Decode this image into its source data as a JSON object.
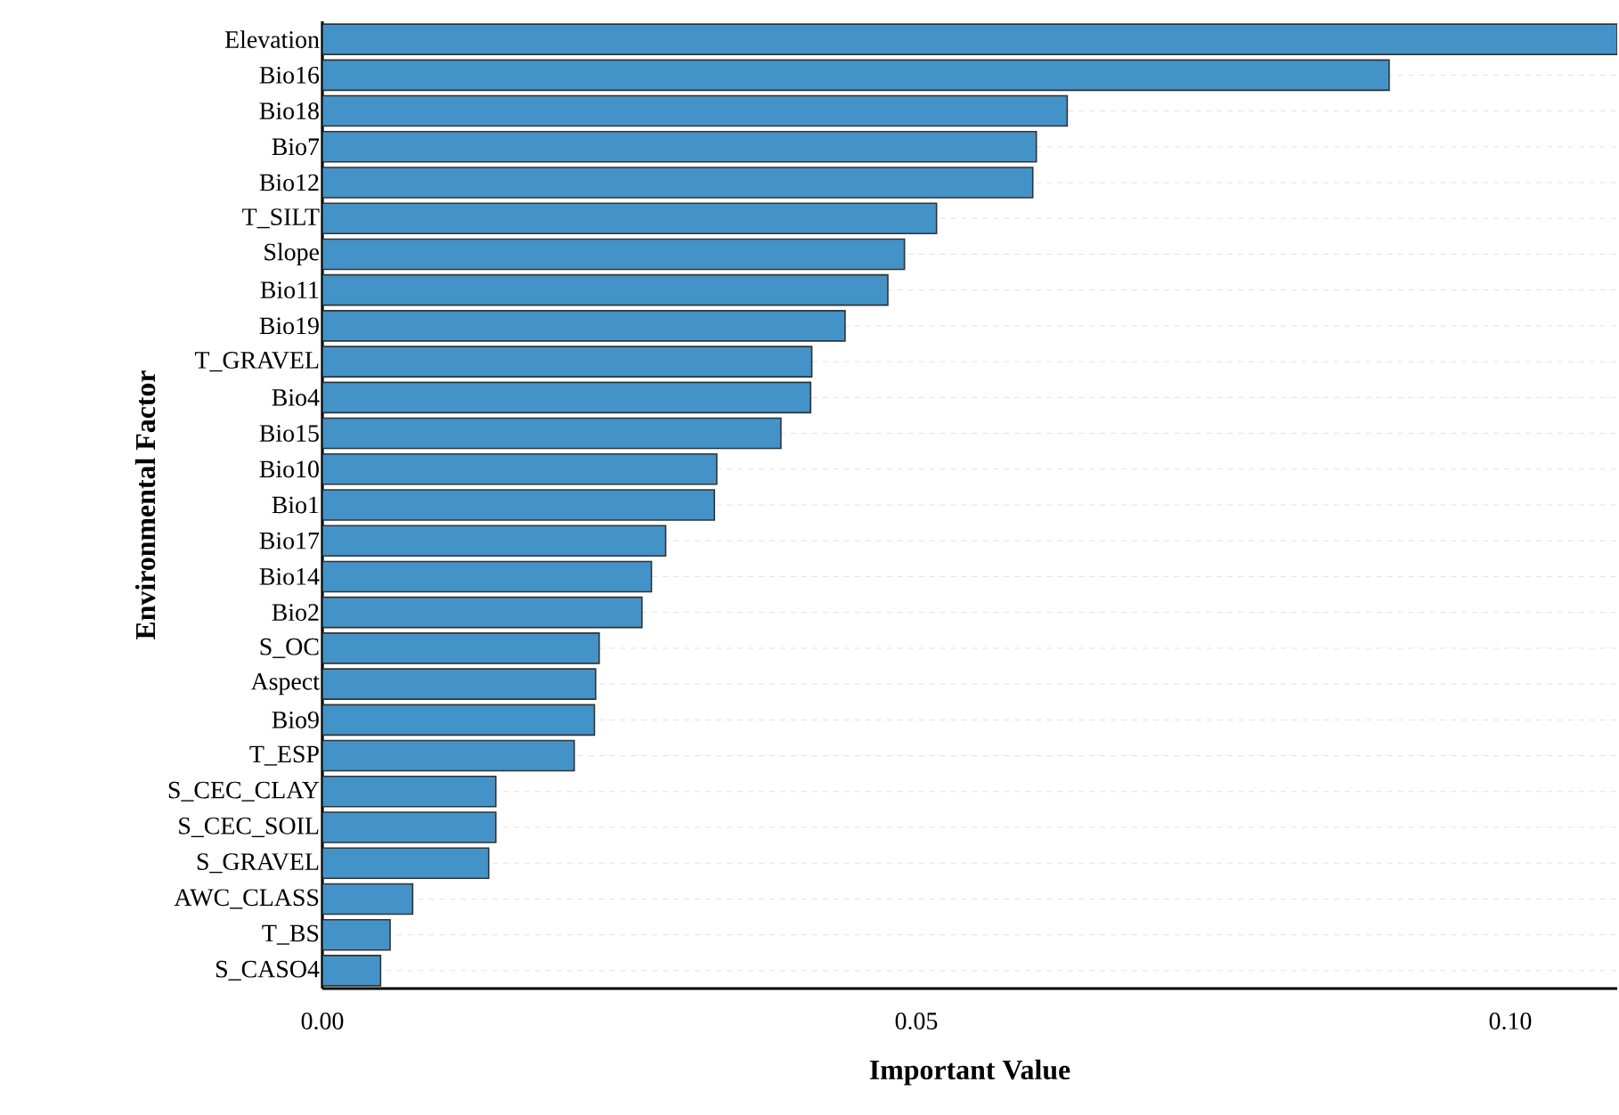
{
  "chart_data": {
    "type": "bar",
    "orientation": "horizontal",
    "xlabel": "Important Value",
    "ylabel": "Environmental Factor",
    "categories": [
      "Elevation",
      "Bio16",
      "Bio18",
      "Bio7",
      "Bio12",
      "T_SILT",
      "Slope",
      "Bio11",
      "Bio19",
      "T_GRAVEL",
      "Bio4",
      "Bio15",
      "Bio10",
      "Bio1",
      "Bio17",
      "Bio14",
      "Bio2",
      "S_OC",
      "Aspect",
      "Bio9",
      "T_ESP",
      "S_CEC_CLAY",
      "S_CEC_SOIL",
      "S_GRAVEL",
      "AWC_CLASS",
      "T_BS",
      "S_CASO4"
    ],
    "values": [
      0.109,
      0.0898,
      0.0627,
      0.0601,
      0.0598,
      0.0517,
      0.049,
      0.0476,
      0.044,
      0.0412,
      0.0411,
      0.0386,
      0.0332,
      0.033,
      0.0289,
      0.0277,
      0.0269,
      0.0233,
      0.023,
      0.0229,
      0.0212,
      0.0146,
      0.0146,
      0.014,
      0.0076,
      0.0057,
      0.0049
    ],
    "color": "#4393c8",
    "xlim": [
      0,
      0.109
    ],
    "xticks": [
      {
        "value": 0,
        "label": "0.00"
      },
      {
        "value": 0.05,
        "label": "0.05"
      },
      {
        "value": 0.1,
        "label": "0.10"
      }
    ],
    "grid": "y"
  }
}
